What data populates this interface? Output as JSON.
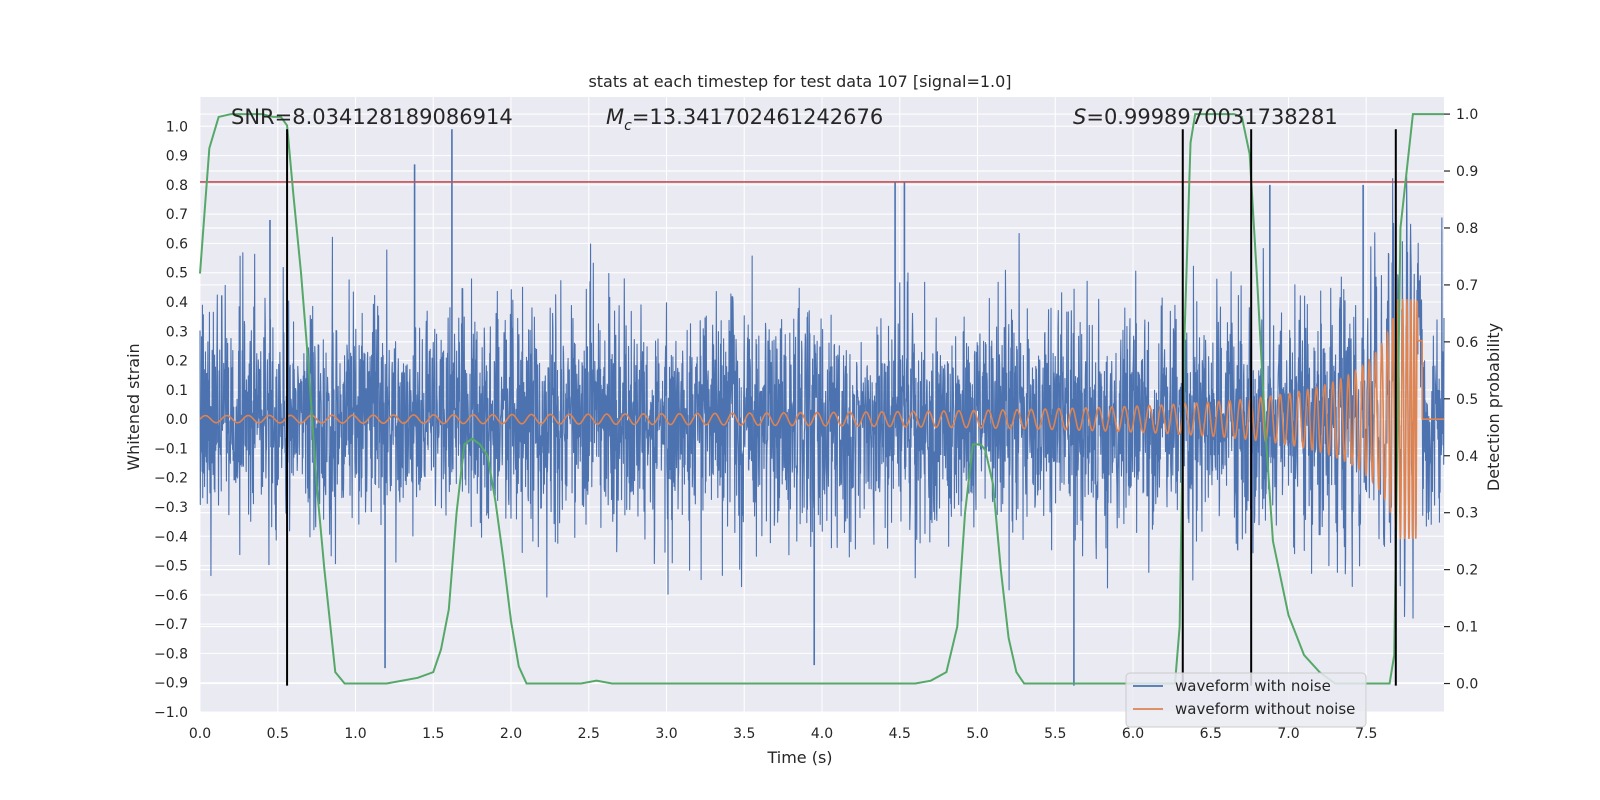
{
  "chart_data": {
    "type": "line",
    "title": "stats at each timestep for test data 107 [signal=1.0]",
    "xlabel": "Time (s)",
    "ylabel": "Whitened strain",
    "y2label": "Detection probability",
    "xlim": [
      0.0,
      8.0
    ],
    "ylim": [
      -1.0,
      1.1
    ],
    "y2lim": [
      -0.05,
      1.03
    ],
    "x_ticks": [
      0.0,
      0.5,
      1.0,
      1.5,
      2.0,
      2.5,
      3.0,
      3.5,
      4.0,
      4.5,
      5.0,
      5.5,
      6.0,
      6.5,
      7.0,
      7.5
    ],
    "x_tick_labels": [
      "0.0",
      "0.5",
      "1.0",
      "1.5",
      "2.0",
      "2.5",
      "3.0",
      "3.5",
      "4.0",
      "4.5",
      "5.0",
      "5.5",
      "6.0",
      "6.5",
      "7.0",
      "7.5"
    ],
    "y_ticks": [
      1.0,
      0.9,
      0.8,
      0.7,
      0.6,
      0.5,
      0.4,
      0.3,
      0.2,
      0.1,
      0.0,
      -0.1,
      -0.2,
      -0.3,
      -0.4,
      -0.5,
      -0.6,
      -0.7,
      -0.8,
      -0.9,
      -1.0
    ],
    "y_tick_labels": [
      "1.0",
      "0.9",
      "0.8",
      "0.7",
      "0.6",
      "0.5",
      "0.4",
      "0.3",
      "0.2",
      "0.1",
      "0.0",
      "−0.1",
      "−0.2",
      "−0.3",
      "−0.4",
      "−0.5",
      "−0.6",
      "−0.7",
      "−0.8",
      "−0.9",
      "−1.0"
    ],
    "y2_ticks": [
      1.0,
      0.9,
      0.8,
      0.7,
      0.6,
      0.5,
      0.4,
      0.3,
      0.2,
      0.1,
      0.0
    ],
    "y2_tick_labels": [
      "1.0",
      "0.9",
      "0.8",
      "0.7",
      "0.6",
      "0.5",
      "0.4",
      "0.3",
      "0.2",
      "0.1",
      "0.0"
    ],
    "annotations": {
      "snr": "SNR=8.034128189086914",
      "mc_symbol": "M",
      "mc_subscript": "c",
      "mc_value": "=13.341702461242676",
      "s_symbol": "S",
      "s_value": "=0.9998970031738281"
    },
    "threshold": {
      "y": 0.81,
      "color": "#c44e52"
    },
    "vertical_markers": [
      0.56,
      6.32,
      6.76,
      7.69
    ],
    "marker_range": [
      -0.91,
      0.99
    ],
    "series": [
      {
        "name": "waveform with noise",
        "color": "#4c72b0",
        "sample_rate": 512,
        "noise_sigma": 0.19,
        "x_range": [
          0.0,
          8.0
        ],
        "spikes": [
          [
            1.62,
            0.99
          ],
          [
            1.38,
            0.87
          ],
          [
            0.45,
            0.68
          ],
          [
            4.47,
            0.81
          ],
          [
            4.53,
            0.81
          ],
          [
            6.88,
            0.8
          ],
          [
            7.48,
            0.8
          ],
          [
            5.62,
            -0.91
          ],
          [
            1.19,
            -0.85
          ],
          [
            3.95,
            -0.84
          ],
          [
            3.85,
            0.11
          ]
        ]
      },
      {
        "name": "waveform without noise",
        "color": "#dd8452",
        "x_range": [
          0.0,
          7.86
        ],
        "amplitude_start": 0.012,
        "amplitude_peak": 0.41,
        "freq_start": 7.5,
        "merger_time": 7.83
      },
      {
        "name": "detection probability",
        "color": "#55a868",
        "axis": "right",
        "x": [
          0.0,
          0.06,
          0.12,
          0.2,
          0.3,
          0.4,
          0.47,
          0.52,
          0.56,
          0.6,
          0.65,
          0.7,
          0.75,
          0.8,
          0.87,
          0.93,
          1.0,
          1.2,
          1.4,
          1.5,
          1.55,
          1.6,
          1.65,
          1.7,
          1.75,
          1.8,
          1.85,
          1.9,
          1.95,
          2.0,
          2.05,
          2.1,
          2.15,
          2.2,
          2.45,
          2.55,
          2.65,
          2.75,
          3.0,
          4.6,
          4.7,
          4.8,
          4.87,
          4.92,
          4.97,
          5.02,
          5.05,
          5.1,
          5.15,
          5.2,
          5.25,
          5.3,
          5.36,
          5.5,
          6.2,
          6.27,
          6.3,
          6.33,
          6.37,
          6.4,
          6.5,
          6.65,
          6.7,
          6.75,
          6.8,
          6.85,
          6.9,
          7.0,
          7.1,
          7.2,
          7.3,
          7.6,
          7.65,
          7.68,
          7.72,
          7.8,
          8.0
        ],
        "values": [
          0.72,
          0.94,
          0.995,
          1.0,
          1.0,
          1.0,
          0.995,
          0.995,
          0.98,
          0.86,
          0.72,
          0.55,
          0.35,
          0.2,
          0.02,
          0.0,
          0.0,
          0.0,
          0.01,
          0.02,
          0.06,
          0.13,
          0.3,
          0.42,
          0.43,
          0.42,
          0.4,
          0.32,
          0.22,
          0.11,
          0.03,
          0.0,
          0.0,
          0.0,
          0.0,
          0.005,
          0.0,
          0.0,
          0.0,
          0.0,
          0.005,
          0.02,
          0.1,
          0.3,
          0.42,
          0.42,
          0.41,
          0.35,
          0.2,
          0.08,
          0.02,
          0.0,
          0.0,
          0.0,
          0.0,
          0.0,
          0.1,
          0.6,
          0.95,
          1.0,
          1.0,
          1.0,
          0.995,
          0.93,
          0.7,
          0.45,
          0.25,
          0.12,
          0.05,
          0.02,
          0.0,
          0.0,
          0.0,
          0.05,
          0.8,
          1.0,
          1.0
        ]
      }
    ],
    "legend": {
      "location": "lower-right",
      "entries": [
        {
          "label": "waveform with noise",
          "color": "#4c72b0"
        },
        {
          "label": "waveform without noise",
          "color": "#dd8452"
        }
      ]
    },
    "style": {
      "background": "#eaeaf2",
      "grid_color": "#ffffff"
    }
  }
}
